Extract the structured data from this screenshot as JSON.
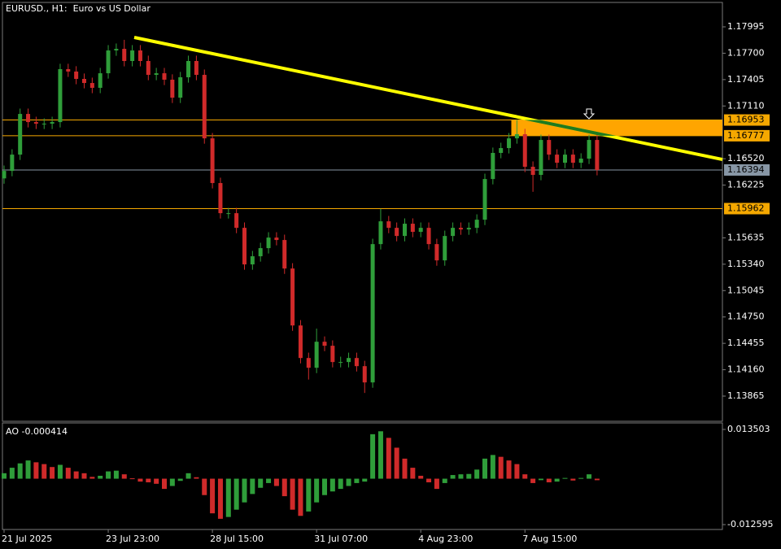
{
  "chart_data": [
    {
      "type": "candlestick",
      "title": "EURUSD., H1:  Euro vs US Dollar",
      "categories": [
        "21 Jul 2025",
        null,
        null,
        null,
        null,
        null,
        null,
        null,
        null,
        null,
        null,
        null,
        null,
        "23 Jul 23:00",
        null,
        null,
        null,
        null,
        null,
        null,
        null,
        null,
        null,
        null,
        null,
        null,
        "28 Jul 15:00",
        null,
        null,
        null,
        null,
        null,
        null,
        null,
        null,
        null,
        null,
        null,
        null,
        "31 Jul 07:00",
        null,
        null,
        null,
        null,
        null,
        null,
        null,
        null,
        null,
        null,
        null,
        null,
        "4 Aug 23:00",
        null,
        null,
        null,
        null,
        null,
        null,
        null,
        null,
        null,
        null,
        null,
        null,
        "7 Aug 15:00",
        null,
        null,
        null,
        null,
        null,
        null,
        null,
        null,
        null
      ],
      "open": [
        1.163,
        1.16384,
        1.16566,
        1.17021,
        1.1693,
        1.16912,
        1.16912,
        1.1693,
        1.17522,
        1.17495,
        1.17413,
        1.17367,
        1.17313,
        1.17476,
        1.17731,
        1.17749,
        1.17613,
        1.17731,
        1.17613,
        1.17458,
        1.17476,
        1.17404,
        1.17203,
        1.17431,
        1.17613,
        1.17458,
        1.16748,
        1.16248,
        1.15911,
        1.15911,
        1.15747,
        1.15338,
        1.15429,
        1.1552,
        1.15638,
        1.15611,
        1.15292,
        1.14655,
        1.14291,
        1.14182,
        1.14473,
        1.14428,
        1.14246,
        1.14246,
        1.14291,
        1.142,
        1.14018,
        1.15565,
        1.1582,
        1.15747,
        1.15656,
        1.15793,
        1.15702,
        1.15747,
        1.15565,
        1.15383,
        1.15656,
        1.15747,
        1.15729,
        1.15747,
        1.15838,
        1.16293,
        1.16585,
        1.16639,
        1.16748,
        1.16794,
        1.1643,
        1.16339,
        1.1673,
        1.16566,
        1.16475,
        1.16566,
        1.16475,
        1.16521,
        1.1673
      ],
      "high": [
        1.16444,
        1.16626,
        1.17081,
        1.17081,
        1.1699,
        1.16972,
        1.1699,
        1.17582,
        1.17582,
        1.17555,
        1.17473,
        1.17427,
        1.17536,
        1.17791,
        1.17809,
        1.1785,
        1.17791,
        1.17791,
        1.17673,
        1.17536,
        1.17536,
        1.17464,
        1.17491,
        1.17673,
        1.17673,
        1.17518,
        1.16808,
        1.16308,
        1.15971,
        1.15971,
        1.15807,
        1.15489,
        1.1558,
        1.15698,
        1.15698,
        1.15671,
        1.15352,
        1.14715,
        1.14351,
        1.1462,
        1.14533,
        1.14488,
        1.14306,
        1.14351,
        1.14351,
        1.1426,
        1.15625,
        1.1596,
        1.1588,
        1.15807,
        1.15853,
        1.15853,
        1.15807,
        1.15807,
        1.15625,
        1.15716,
        1.15807,
        1.15807,
        1.15807,
        1.15898,
        1.16353,
        1.16645,
        1.16699,
        1.16808,
        1.16953,
        1.16854,
        1.1649,
        1.1679,
        1.1679,
        1.16626,
        1.16626,
        1.16626,
        1.16581,
        1.1679,
        1.1679
      ],
      "low": [
        1.1624,
        1.16324,
        1.16506,
        1.1687,
        1.16852,
        1.16852,
        1.16852,
        1.1687,
        1.17435,
        1.17353,
        1.17307,
        1.17253,
        1.17253,
        1.17416,
        1.17671,
        1.17553,
        1.17553,
        1.17553,
        1.17398,
        1.17398,
        1.17344,
        1.17143,
        1.17143,
        1.17371,
        1.17398,
        1.16688,
        1.16188,
        1.15851,
        1.15851,
        1.15687,
        1.15278,
        1.15278,
        1.15369,
        1.1546,
        1.15551,
        1.15232,
        1.14595,
        1.14231,
        1.1405,
        1.14122,
        1.14368,
        1.14186,
        1.14186,
        1.14186,
        1.1414,
        1.139,
        1.13958,
        1.15505,
        1.15687,
        1.15596,
        1.15596,
        1.15642,
        1.15642,
        1.15505,
        1.15323,
        1.15323,
        1.15596,
        1.15669,
        1.15669,
        1.15687,
        1.15778,
        1.16233,
        1.16525,
        1.16579,
        1.16688,
        1.1637,
        1.1615,
        1.16279,
        1.16506,
        1.16415,
        1.16415,
        1.16415,
        1.16415,
        1.16461,
        1.16334
      ],
      "close": [
        1.16384,
        1.16566,
        1.17021,
        1.1693,
        1.16912,
        1.16912,
        1.1693,
        1.17522,
        1.17495,
        1.17413,
        1.17367,
        1.17313,
        1.17476,
        1.17731,
        1.17749,
        1.17613,
        1.17731,
        1.17613,
        1.17458,
        1.17476,
        1.17404,
        1.17203,
        1.17431,
        1.17613,
        1.17458,
        1.16748,
        1.16248,
        1.15911,
        1.15911,
        1.15747,
        1.15338,
        1.15429,
        1.1552,
        1.15638,
        1.15611,
        1.15292,
        1.14655,
        1.14291,
        1.14182,
        1.14473,
        1.14428,
        1.14246,
        1.14246,
        1.14291,
        1.142,
        1.14018,
        1.15565,
        1.1582,
        1.15747,
        1.15656,
        1.15793,
        1.15702,
        1.15747,
        1.15565,
        1.15383,
        1.15656,
        1.15747,
        1.15729,
        1.15747,
        1.15838,
        1.16293,
        1.16585,
        1.16639,
        1.16748,
        1.16794,
        1.1643,
        1.16339,
        1.1673,
        1.16566,
        1.16475,
        1.16566,
        1.16475,
        1.16521,
        1.1673,
        1.16394
      ],
      "up_color": "#2f9e3a",
      "down_color": "#d02a2a",
      "ylim": [
        1.13583,
        1.18268
      ],
      "yticks": [
        1.17995,
        {
          "value": 1.177,
          "label": "1.17700"
        },
        1.17405,
        {
          "value": 1.1711,
          "label": "1.17110"
        },
        {
          "value": 1.1652,
          "label": "1.16520"
        },
        1.16225,
        1.15635,
        {
          "value": 1.1534,
          "label": "1.15340"
        },
        1.15045,
        {
          "value": 1.1475,
          "label": "1.14750"
        },
        1.14455,
        {
          "value": 1.1416,
          "label": "1.14160"
        },
        1.13865
      ],
      "levels": [
        {
          "value": 1.16953,
          "color": "#f5a800"
        },
        {
          "value": 1.16777,
          "color": "#f5a800"
        },
        {
          "value": 1.16394,
          "color": "#8796a5"
        },
        {
          "value": 1.15962,
          "color": "#f5a800"
        }
      ],
      "zone": {
        "values": [
          1.16953,
          1.16777
        ],
        "color": "#ffa500"
      },
      "trendline": {
        "values": [
          1.17877,
          1.16512
        ],
        "color": "#ffff00",
        "overlap_color": "#1f7a1f"
      }
    },
    {
      "type": "bar",
      "title": "AO -0.000414",
      "values": [
        0.0015,
        0.003,
        0.0042,
        0.005,
        0.0045,
        0.004,
        0.0032,
        0.0038,
        0.003,
        0.002,
        0.0015,
        0.0005,
        0.0008,
        0.002,
        0.0022,
        0.0012,
        0.0001,
        -0.0008,
        -0.001,
        -0.0014,
        -0.0028,
        -0.002,
        -0.0006,
        0.0015,
        0.0004,
        -0.0045,
        -0.0095,
        -0.011,
        -0.0105,
        -0.0085,
        -0.0065,
        -0.0042,
        -0.0025,
        -0.0012,
        -0.002,
        -0.0048,
        -0.0085,
        -0.0102,
        -0.009,
        -0.0065,
        -0.0045,
        -0.0035,
        -0.0028,
        -0.002,
        -0.0012,
        -0.0008,
        0.0122,
        0.013,
        0.0112,
        0.0085,
        0.0055,
        0.003,
        0.0008,
        -0.001,
        -0.0028,
        -0.0012,
        0.001,
        0.0012,
        0.0013,
        0.0025,
        0.0055,
        0.0065,
        0.006,
        0.005,
        0.004,
        0.0012,
        -0.0012,
        -0.0004,
        -0.001,
        -0.0008,
        0.0002,
        -0.0005,
        0.0002,
        0.0012,
        -0.000414
      ],
      "up_color": "#2f9e3a",
      "down_color": "#d02a2a",
      "ylim": [
        -0.01393,
        0.01529
      ],
      "yticks": [
        -0.012595,
        0.013503
      ]
    }
  ]
}
